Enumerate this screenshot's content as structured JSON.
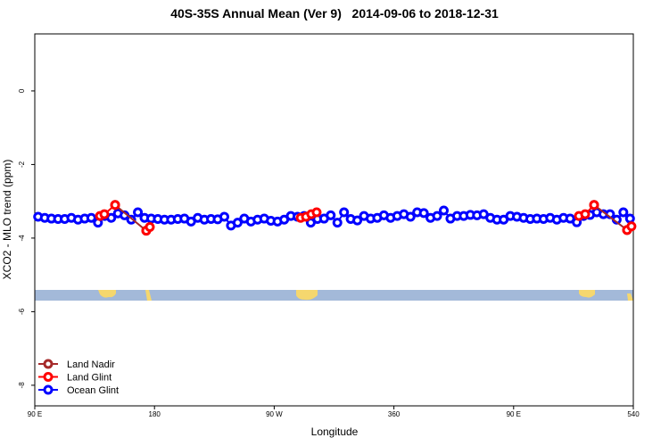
{
  "chart_data": {
    "type": "line",
    "title": "40S-35S Annual Mean (Ver 9)   2014-09-06 to 2018-12-31",
    "x_label": "Longitude",
    "y_label": "XCO2 - MLO trend (ppm)",
    "xlim": [
      90,
      540
    ],
    "ylim": [
      -8.56,
      1.55
    ],
    "xticks": [
      {
        "value": 90,
        "label": "90 E"
      },
      180,
      {
        "value": 270,
        "label": "90 W"
      },
      360,
      {
        "value": 450,
        "label": "90 E"
      },
      540
    ],
    "yticks": [
      0,
      -2,
      -4,
      -6,
      -8
    ],
    "legend": "bottom-left",
    "series": [
      {
        "name": "Ocean Glint",
        "color": "#0000ff",
        "x": [
          92.5,
          97.5,
          102.5,
          107.5,
          112.5,
          117.5,
          122.5,
          127.5,
          132.5,
          137.5,
          142.5,
          147.5,
          152.5,
          157.5,
          162.5,
          167.5,
          172.5,
          177.5,
          182.5,
          187.5,
          192.5,
          197.5,
          202.5,
          207.5,
          212.5,
          217.5,
          222.5,
          227.5,
          232.5,
          237.5,
          242.5,
          247.5,
          252.5,
          257.5,
          262.5,
          267.5,
          272.5,
          277.5,
          282.5,
          287.5,
          292.5,
          297.5,
          302.5,
          307.5,
          312.5,
          317.5,
          322.5,
          327.5,
          332.5,
          337.5,
          342.5,
          347.5,
          352.5,
          357.5,
          362.5,
          367.5,
          372.5,
          377.5,
          382.5,
          387.5,
          392.5,
          397.5,
          402.5,
          407.5,
          412.5,
          417.5,
          422.5,
          427.5,
          432.5,
          437.5,
          442.5,
          447.5,
          452.5,
          457.5,
          462.5,
          467.5,
          472.5,
          477.5,
          482.5,
          487.5,
          492.5,
          497.5,
          502.5,
          507.5,
          512.5,
          517.5,
          522.5,
          527.5,
          532.5,
          537.5
        ],
        "values": [
          -3.42,
          -3.45,
          -3.47,
          -3.48,
          -3.48,
          -3.45,
          -3.5,
          -3.47,
          -3.45,
          -3.58,
          -3.4,
          -3.45,
          -3.33,
          -3.38,
          -3.5,
          -3.3,
          -3.45,
          -3.47,
          -3.48,
          -3.5,
          -3.5,
          -3.48,
          -3.47,
          -3.55,
          -3.45,
          -3.5,
          -3.48,
          -3.49,
          -3.42,
          -3.66,
          -3.58,
          -3.47,
          -3.55,
          -3.5,
          -3.47,
          -3.53,
          -3.55,
          -3.5,
          -3.4,
          -3.42,
          -3.4,
          -3.58,
          -3.48,
          -3.47,
          -3.38,
          -3.58,
          -3.3,
          -3.48,
          -3.52,
          -3.4,
          -3.47,
          -3.45,
          -3.38,
          -3.45,
          -3.4,
          -3.35,
          -3.42,
          -3.3,
          -3.32,
          -3.45,
          -3.4,
          -3.25,
          -3.47,
          -3.4,
          -3.4,
          -3.37,
          -3.38,
          -3.35,
          -3.45,
          -3.5,
          -3.5,
          -3.4,
          -3.42,
          -3.45,
          -3.48,
          -3.47,
          -3.48,
          -3.45,
          -3.5,
          -3.45,
          -3.47,
          -3.57,
          -3.4,
          -3.37,
          -3.3,
          -3.35,
          -3.35,
          -3.5,
          -3.3,
          -3.47
        ]
      },
      {
        "name": "Land Nadir",
        "color": "#a52a2a",
        "x": [
          150.4,
          173.8,
          null,
          510.5,
          535.3
        ],
        "values": [
          -3.1,
          -3.8,
          null,
          -3.1,
          -3.78
        ]
      },
      {
        "name": "Land Glint",
        "color": "#ff0000",
        "x": [
          139,
          142.3,
          150.4,
          null,
          173.8,
          176.5,
          null,
          289.9,
          293.9,
          297.9,
          301.9,
          null,
          499.1,
          503.8,
          510.5,
          null,
          535.3,
          538.6
        ],
        "values": [
          -3.4,
          -3.35,
          -3.1,
          null,
          -3.8,
          -3.7,
          null,
          -3.45,
          -3.42,
          -3.35,
          -3.3,
          null,
          -3.4,
          -3.35,
          -3.1,
          null,
          -3.78,
          -3.68
        ]
      }
    ]
  }
}
